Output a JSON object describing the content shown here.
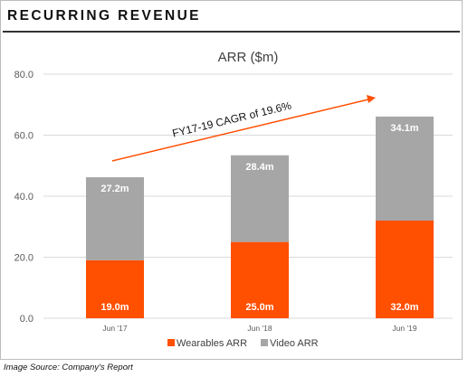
{
  "heading": "RECURRING REVENUE",
  "source": "Image Source: Company's Report",
  "colors": {
    "wearables": "#FF4F00",
    "video": "#A6A6A6",
    "arrow": "#FF4F00",
    "grid": "#D9D9D9"
  },
  "chart_data": {
    "type": "bar",
    "stacked": true,
    "title": "ARR ($m)",
    "categories": [
      "Jun '17",
      "Jun '18",
      "Jun '19"
    ],
    "series": [
      {
        "name": "Wearables ARR",
        "values": [
          19.0,
          25.0,
          32.0
        ],
        "labels": [
          "19.0m",
          "25.0m",
          "32.0m"
        ]
      },
      {
        "name": "Video ARR",
        "values": [
          27.2,
          28.4,
          34.1
        ],
        "labels": [
          "27.2m",
          "28.4m",
          "34.1m"
        ]
      }
    ],
    "ylim": [
      0,
      80
    ],
    "yticks": [
      0,
      20,
      40,
      60,
      80
    ],
    "ytick_labels": [
      "0.0",
      "20.0",
      "40.0",
      "60.0",
      "80.0"
    ],
    "grid": true,
    "legend_position": "bottom",
    "annotation": "FY17-19 CAGR of 19.6%"
  }
}
